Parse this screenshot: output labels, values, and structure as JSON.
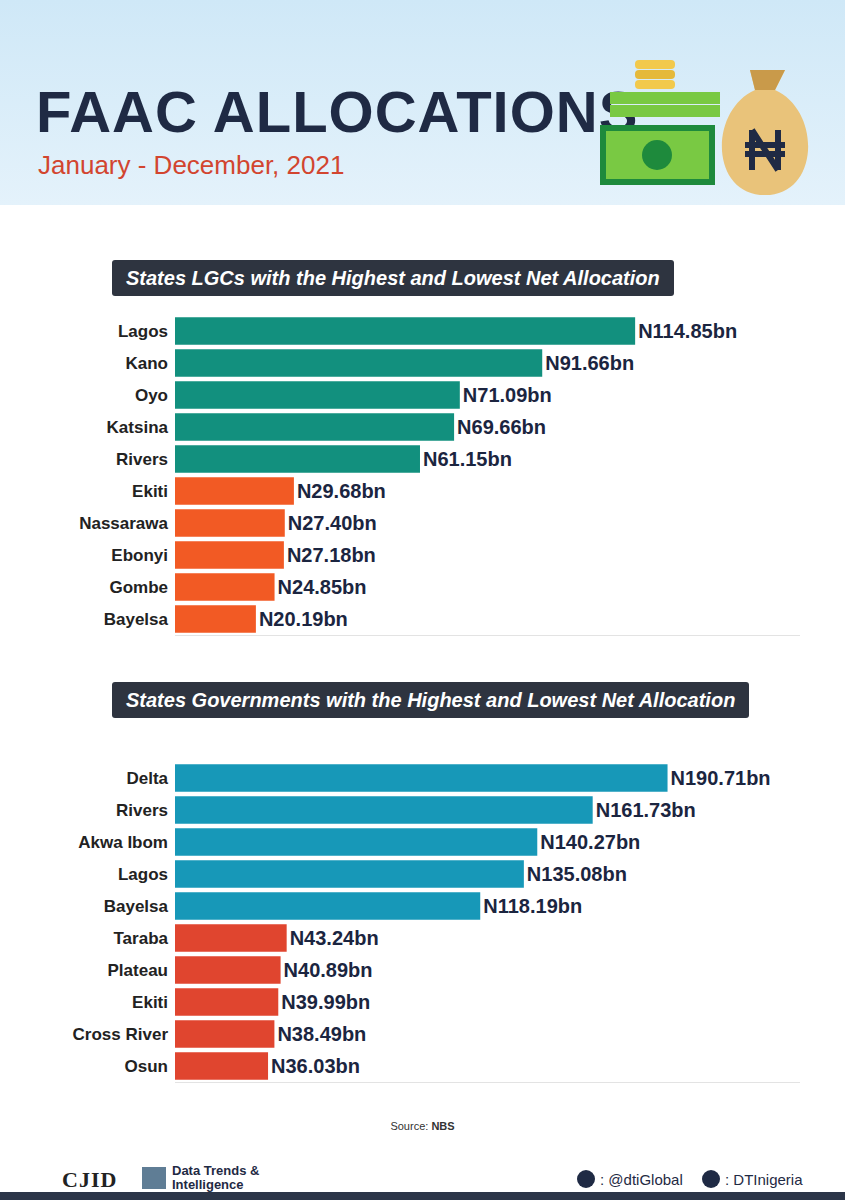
{
  "header": {
    "title": "FAAC ALLOCATIONS",
    "subtitle": "January - December, 2021"
  },
  "chart_data": [
    {
      "type": "bar",
      "orientation": "horizontal",
      "title": "States LGCs with the Highest and Lowest Net Allocation",
      "categories": [
        "Lagos",
        "Kano",
        "Oyo",
        "Katsina",
        "Rivers",
        "Ekiti",
        "Nassarawa",
        "Ebonyi",
        "Gombe",
        "Bayelsa"
      ],
      "values": [
        114.85,
        91.66,
        71.09,
        69.66,
        61.15,
        29.68,
        27.4,
        27.18,
        24.85,
        20.19
      ],
      "value_labels": [
        "N114.85bn",
        "N91.66bn",
        "N71.09bn",
        "N69.66bn",
        "N61.15bn",
        "N29.68bn",
        "N27.40bn",
        "N27.18bn",
        "N24.85bn",
        "N20.19bn"
      ],
      "colors": [
        "#12907e",
        "#12907e",
        "#12907e",
        "#12907e",
        "#12907e",
        "#f25a24",
        "#f25a24",
        "#f25a24",
        "#f25a24",
        "#f25a24"
      ],
      "xlim": [
        0,
        156
      ],
      "grid": false,
      "data_labels": true,
      "tick_labels": "y"
    },
    {
      "type": "bar",
      "orientation": "horizontal",
      "title": "States Governments with the Highest and Lowest Net Allocation",
      "categories": [
        "Delta",
        "Rivers",
        "Akwa Ibom",
        "Lagos",
        "Bayelsa",
        "Taraba",
        "Plateau",
        "Ekiti",
        "Cross River",
        "Osun"
      ],
      "values": [
        190.71,
        161.73,
        140.27,
        135.08,
        118.19,
        43.24,
        40.89,
        39.99,
        38.49,
        36.03
      ],
      "value_labels": [
        "N190.71bn",
        "N161.73bn",
        "N140.27bn",
        "N135.08bn",
        "N118.19bn",
        "N43.24bn",
        "N40.89bn",
        "N39.99bn",
        "N38.49bn",
        "N36.03bn"
      ],
      "colors": [
        "#1798b8",
        "#1798b8",
        "#1798b8",
        "#1798b8",
        "#1798b8",
        "#e0452f",
        "#e0452f",
        "#e0452f",
        "#e0452f",
        "#e0452f"
      ],
      "xlim": [
        0,
        242
      ],
      "grid": false,
      "data_labels": true,
      "tick_labels": "y"
    }
  ],
  "source": {
    "label": "Source:",
    "name": "NBS"
  },
  "footer": {
    "logo": "CJID",
    "brand": "Data Trends & Intelligence",
    "twitter": ": @dtiGlobal",
    "facebook": ": DTInigeria"
  }
}
